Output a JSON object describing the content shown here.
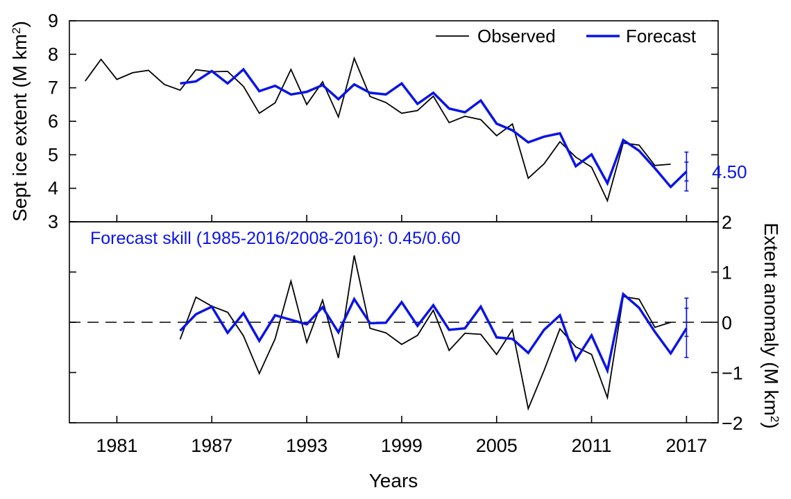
{
  "colors": {
    "observed": "#000000",
    "forecast": "#0a14e6",
    "axes": "#000000"
  },
  "chart_data": [
    {
      "type": "line",
      "panel": "top",
      "ylabel": "Sept ice extent (M km²)",
      "ylabel_main": "Sept ice extent (M km",
      "ylabel_sup": "2",
      "ylabel_close": ")",
      "ylim": [
        3,
        9
      ],
      "yticks": [
        "3",
        "4",
        "5",
        "6",
        "7",
        "8",
        "9"
      ],
      "legend": {
        "position": "top-right",
        "entries": [
          "Observed",
          "Forecast"
        ]
      },
      "forecast_label": "4.50",
      "forecast_value": 4.5,
      "error_bars": [
        {
          "x": 2017,
          "low": 4.22,
          "high": 4.78
        },
        {
          "x": 2017,
          "low": 3.92,
          "high": 5.08
        }
      ],
      "series": [
        {
          "name": "Observed",
          "x": [
            1979,
            1980,
            1981,
            1982,
            1983,
            1984,
            1985,
            1986,
            1987,
            1988,
            1989,
            1990,
            1991,
            1992,
            1993,
            1994,
            1995,
            1996,
            1997,
            1998,
            1999,
            2000,
            2001,
            2002,
            2003,
            2004,
            2005,
            2006,
            2007,
            2008,
            2009,
            2010,
            2011,
            2012,
            2013,
            2014,
            2015,
            2016
          ],
          "values": [
            7.2,
            7.85,
            7.25,
            7.45,
            7.52,
            7.1,
            6.93,
            7.54,
            7.48,
            7.49,
            7.04,
            6.24,
            6.55,
            7.55,
            6.5,
            7.18,
            6.13,
            7.88,
            6.74,
            6.56,
            6.24,
            6.32,
            6.75,
            5.96,
            6.15,
            6.05,
            5.57,
            5.92,
            4.3,
            4.73,
            5.39,
            4.93,
            4.63,
            3.63,
            5.35,
            5.29,
            4.68,
            4.72
          ]
        },
        {
          "name": "Forecast",
          "x": [
            1985,
            1986,
            1987,
            1988,
            1989,
            1990,
            1991,
            1992,
            1993,
            1994,
            1995,
            1996,
            1997,
            1998,
            1999,
            2000,
            2001,
            2002,
            2003,
            2004,
            2005,
            2006,
            2007,
            2008,
            2009,
            2010,
            2011,
            2012,
            2013,
            2014,
            2015,
            2016,
            2017
          ],
          "values": [
            7.13,
            7.19,
            7.5,
            7.13,
            7.55,
            6.9,
            7.06,
            6.8,
            6.88,
            7.08,
            6.66,
            7.1,
            6.85,
            6.8,
            7.13,
            6.52,
            6.85,
            6.38,
            6.27,
            6.62,
            5.93,
            5.73,
            5.37,
            5.54,
            5.64,
            4.66,
            5.01,
            4.15,
            5.44,
            5.12,
            4.6,
            4.04,
            4.5
          ]
        }
      ]
    },
    {
      "type": "line",
      "panel": "bottom",
      "xlabel": "Years",
      "ylabel": "Extent anomaly (M km²)",
      "ylabel_main": "Extent anomaly (M km",
      "ylabel_sup": "2",
      "ylabel_close": ")",
      "xlim": [
        1978,
        2019
      ],
      "ylim": [
        -2,
        2
      ],
      "xticks": [
        "1981",
        "1987",
        "1993",
        "1999",
        "2005",
        "2011",
        "2017"
      ],
      "yticks": [
        "−2",
        "−1",
        "0",
        "1",
        "2"
      ],
      "annotation": "Forecast skill (1985-2016/2008-2016): 0.45/0.60",
      "error_bars": [
        {
          "x": 2017,
          "low": -0.28,
          "high": 0.28
        },
        {
          "x": 2017,
          "low": -0.7,
          "high": 0.48
        }
      ],
      "series": [
        {
          "name": "Observed",
          "x": [
            1985,
            1986,
            1987,
            1988,
            1989,
            1990,
            1991,
            1992,
            1993,
            1994,
            1995,
            1996,
            1997,
            1998,
            1999,
            2000,
            2001,
            2002,
            2003,
            2004,
            2005,
            2006,
            2007,
            2008,
            2009,
            2010,
            2011,
            2012,
            2013,
            2014,
            2015,
            2016
          ],
          "values": [
            -0.34,
            0.5,
            0.32,
            0.2,
            -0.27,
            -1.02,
            -0.33,
            0.82,
            -0.4,
            0.44,
            -0.71,
            1.33,
            -0.12,
            -0.21,
            -0.44,
            -0.26,
            0.24,
            -0.56,
            -0.22,
            -0.24,
            -0.64,
            -0.15,
            -1.72,
            -0.96,
            -0.13,
            -0.49,
            -0.64,
            -1.5,
            0.51,
            0.46,
            -0.1,
            0.0
          ]
        },
        {
          "name": "Forecast",
          "x": [
            1985,
            1986,
            1987,
            1988,
            1989,
            1990,
            1991,
            1992,
            1993,
            1994,
            1995,
            1996,
            1997,
            1998,
            1999,
            2000,
            2001,
            2002,
            2003,
            2004,
            2005,
            2006,
            2007,
            2008,
            2009,
            2010,
            2011,
            2012,
            2013,
            2014,
            2015,
            2016,
            2017
          ],
          "values": [
            -0.17,
            0.16,
            0.31,
            -0.21,
            0.18,
            -0.37,
            0.14,
            0.05,
            -0.04,
            0.3,
            -0.2,
            0.46,
            -0.02,
            -0.01,
            0.4,
            -0.07,
            0.34,
            -0.15,
            -0.12,
            0.31,
            -0.3,
            -0.33,
            -0.61,
            -0.15,
            0.14,
            -0.75,
            -0.26,
            -0.96,
            0.56,
            0.29,
            -0.19,
            -0.62,
            -0.12
          ]
        }
      ]
    }
  ]
}
